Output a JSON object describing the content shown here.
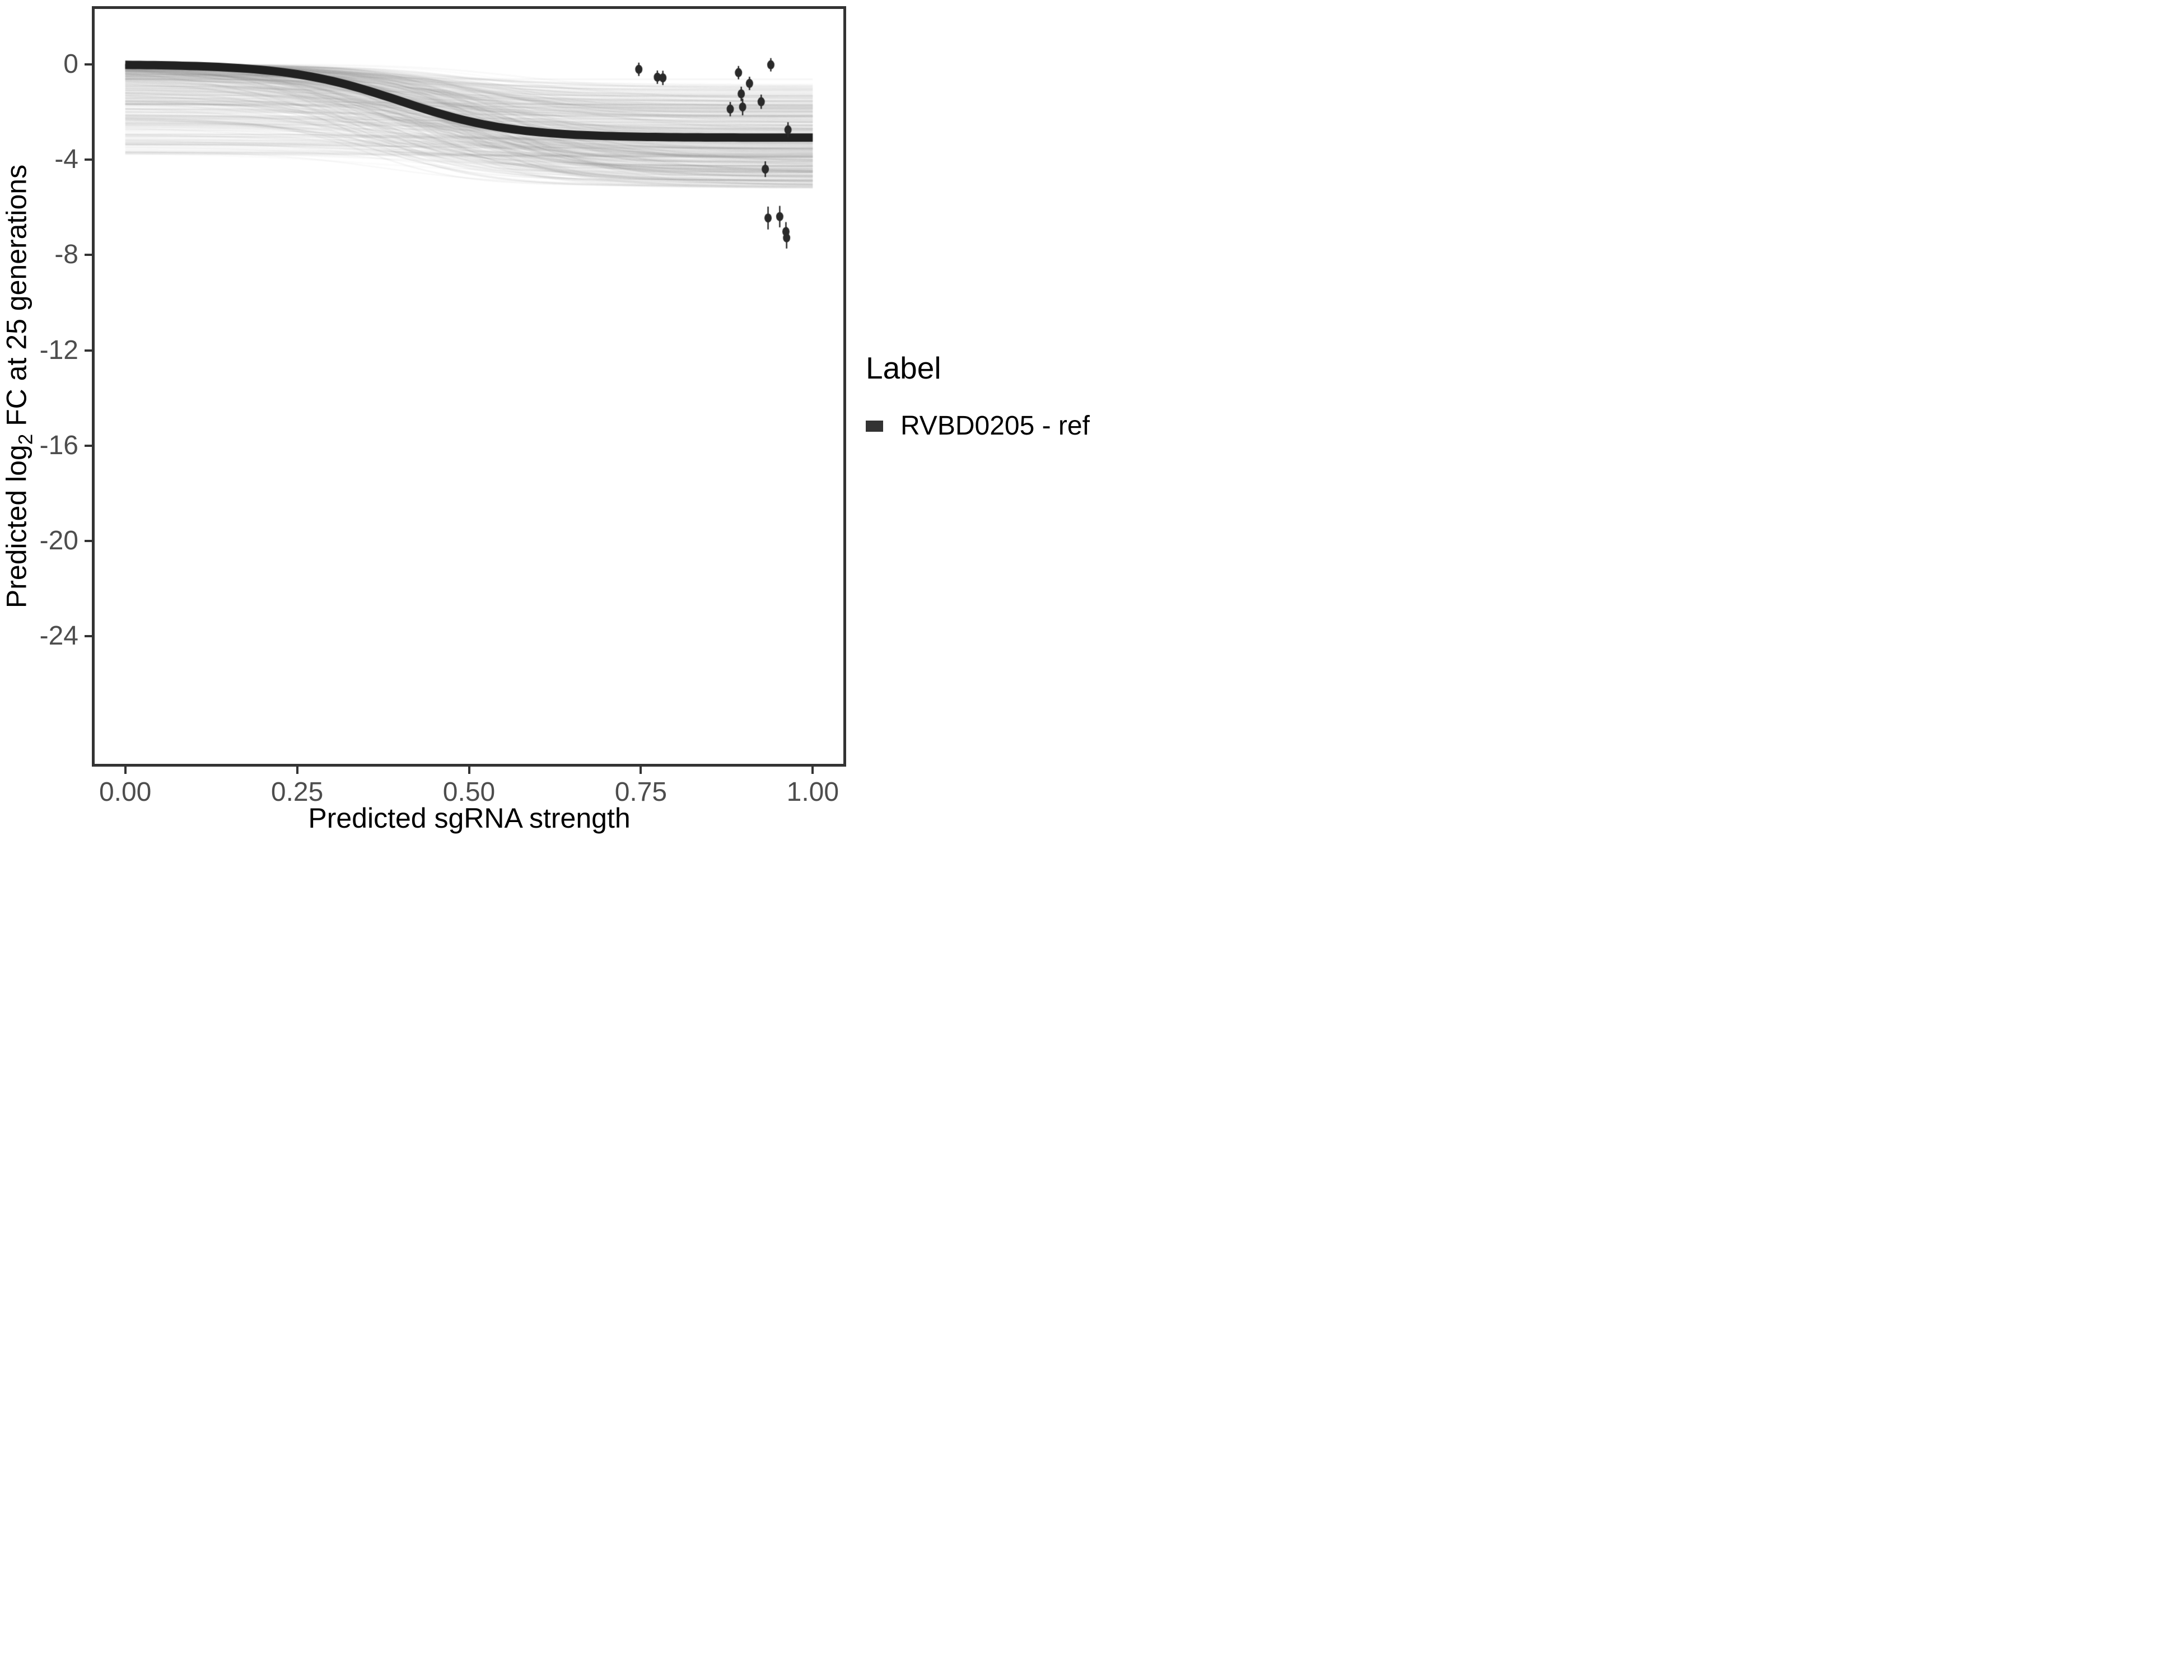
{
  "chart_data": {
    "type": "line",
    "title": "",
    "xlabel": "Predicted sgRNA strength",
    "ylabel": "Predicted log2 FC at 25 generations",
    "ylabel_parts": {
      "prefix": "Predicted  log",
      "sub": "2",
      "suffix": " FC at 25 generations"
    },
    "x_ticks": [
      {
        "label": "0.00",
        "value": 0.0
      },
      {
        "label": "0.25",
        "value": 0.25
      },
      {
        "label": "0.50",
        "value": 0.5
      },
      {
        "label": "0.75",
        "value": 0.75
      },
      {
        "label": "1.00",
        "value": 1.0
      }
    ],
    "y_ticks": [
      {
        "label": "0",
        "value": 0
      },
      {
        "label": "-4",
        "value": -4
      },
      {
        "label": "-8",
        "value": -8
      },
      {
        "label": "-12",
        "value": -12
      },
      {
        "label": "-16",
        "value": -16
      },
      {
        "label": "-20",
        "value": -20
      },
      {
        "label": "-24",
        "value": -24
      }
    ],
    "xlim": [
      -0.0486,
      1.0486
    ],
    "ylim": [
      -29.47,
      2.44
    ],
    "data_x_range": [
      0,
      1
    ],
    "grid": "off",
    "legend_position": "right",
    "median_curve": {
      "label": "RVBD0205 - ref",
      "color": "#212121",
      "max_drop": 3.08,
      "midpoint": 0.4,
      "steepness": 12.4,
      "linewidth": 15
    },
    "posterior_lines": {
      "description": "bundle of semi-transparent posterior draw sigmoids",
      "count": 500,
      "seed": 424242,
      "start_max": 3.8,
      "start_skew": 2.8,
      "end_base": 0.6,
      "end_span": 4.6,
      "end_skew": 0.75,
      "mid_min": 0.32,
      "mid_span": 0.25,
      "k_min": 7,
      "k_span": 8,
      "alpha_min": 0.025,
      "alpha_span": 0.045,
      "lw_min": 2,
      "lw_max": 3.5,
      "gray_min": 95,
      "gray_span": 60
    },
    "points": [
      {
        "x": 0.747,
        "y": -0.21,
        "err": 0.28
      },
      {
        "x": 0.774,
        "y": -0.54,
        "err": 0.28
      },
      {
        "x": 0.782,
        "y": -0.57,
        "err": 0.3
      },
      {
        "x": 0.892,
        "y": -0.35,
        "err": 0.28
      },
      {
        "x": 0.896,
        "y": -1.24,
        "err": 0.3
      },
      {
        "x": 0.88,
        "y": -1.88,
        "err": 0.3
      },
      {
        "x": 0.898,
        "y": -1.79,
        "err": 0.35
      },
      {
        "x": 0.939,
        "y": -0.02,
        "err": 0.28
      },
      {
        "x": 0.908,
        "y": -0.8,
        "err": 0.28
      },
      {
        "x": 0.925,
        "y": -1.57,
        "err": 0.3
      },
      {
        "x": 0.964,
        "y": -2.75,
        "err": 0.32
      },
      {
        "x": 0.931,
        "y": -4.4,
        "err": 0.33
      },
      {
        "x": 0.935,
        "y": -6.45,
        "err": 0.48
      },
      {
        "x": 0.952,
        "y": -6.39,
        "err": 0.45
      },
      {
        "x": 0.961,
        "y": -7.02,
        "err": 0.4
      },
      {
        "x": 0.962,
        "y": -7.28,
        "err": 0.45
      }
    ],
    "point_style": {
      "radius": 6.5,
      "errorbar_width": 2.5,
      "color": "#2a2a2a"
    }
  },
  "legend": {
    "title": "Label",
    "items": [
      {
        "label": "RVBD0205 - ref",
        "swatch_color": "#333333"
      }
    ]
  },
  "panel": {
    "background": "#ffffff",
    "border_color": "#333333",
    "tick_color": "#333333",
    "tick_label_color": "#4d4d4d"
  }
}
